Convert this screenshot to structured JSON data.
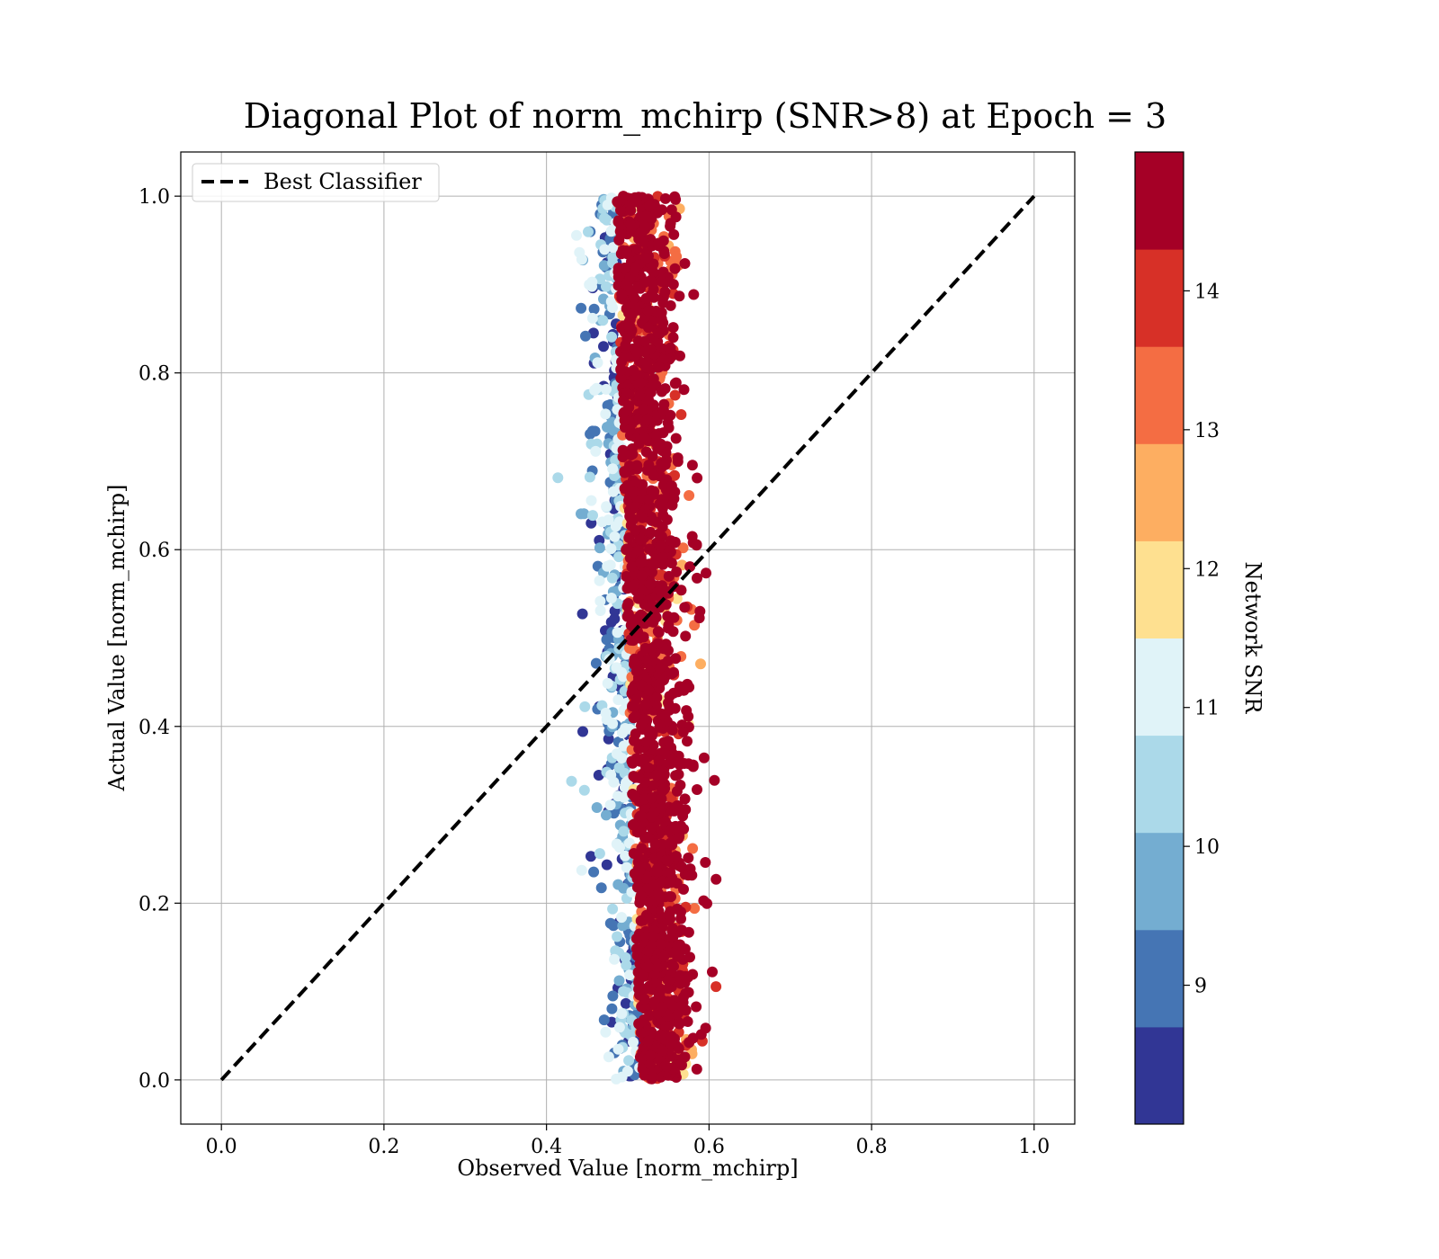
{
  "chart_data": {
    "type": "scatter",
    "title": "Diagonal Plot of norm_mchirp (SNR>8) at Epoch = 3",
    "xlabel": "Observed Value [norm_mchirp]",
    "ylabel": "Actual Value [norm_mchirp]",
    "xlim": [
      -0.05,
      1.05
    ],
    "ylim": [
      -0.05,
      1.05
    ],
    "xticks": [
      "0.0",
      "0.2",
      "0.4",
      "0.6",
      "0.8",
      "1.0"
    ],
    "yticks": [
      "0.0",
      "0.2",
      "0.4",
      "0.6",
      "0.8",
      "1.0"
    ],
    "grid": true,
    "legend": {
      "placement": "top-left",
      "entries": [
        "Best Classifier"
      ]
    },
    "reference_line": {
      "name": "Best Classifier",
      "x": [
        0.0,
        1.0
      ],
      "y": [
        0.0,
        1.0
      ],
      "style": "dashed",
      "color": "#000000"
    },
    "scatter": {
      "x_center_at_y0": 0.535,
      "x_center_at_y1": 0.505,
      "x_spread": 0.025,
      "y_range": [
        0.0,
        1.0
      ],
      "color_variable": "Network SNR"
    },
    "colorbar": {
      "label": "Network SNR",
      "range": [
        8.0,
        15.0
      ],
      "ticks": [
        "9",
        "10",
        "11",
        "12",
        "13",
        "14"
      ],
      "tick_values": [
        9,
        10,
        11,
        12,
        13,
        14
      ],
      "bins": 10,
      "colors": [
        "#313695",
        "#4575b4",
        "#74add1",
        "#abd9e9",
        "#e0f3f8",
        "#fee090",
        "#fdae61",
        "#f46d43",
        "#d73027",
        "#a50026"
      ]
    }
  }
}
